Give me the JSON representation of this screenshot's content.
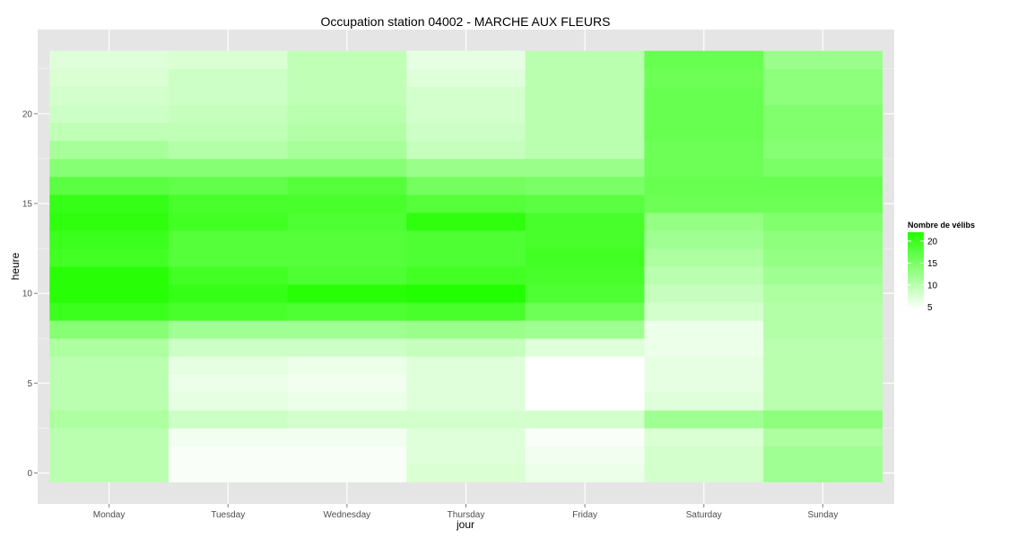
{
  "chart_data": {
    "type": "heatmap",
    "title": "Occupation station 04002 - MARCHE AUX FLEURS",
    "xlabel": "jour",
    "ylabel": "heure",
    "categories": [
      "Monday",
      "Tuesday",
      "Wednesday",
      "Thursday",
      "Friday",
      "Saturday",
      "Sunday"
    ],
    "hours": [
      0,
      1,
      2,
      3,
      4,
      5,
      6,
      7,
      8,
      9,
      10,
      11,
      12,
      13,
      14,
      15,
      16,
      17,
      18,
      19,
      20,
      21,
      22,
      23
    ],
    "y_ticks": [
      0,
      5,
      10,
      15,
      20
    ],
    "ylim": [
      -0.5,
      23.5
    ],
    "values": [
      [
        10,
        5,
        5,
        7.5,
        6,
        8,
        12
      ],
      [
        10,
        5,
        5,
        7,
        5.5,
        8,
        12
      ],
      [
        10,
        5.5,
        5.5,
        7,
        5,
        7.5,
        11
      ],
      [
        11,
        8.5,
        8,
        8,
        8,
        12,
        13.5
      ],
      [
        10,
        6.5,
        6,
        7,
        4.5,
        7,
        10
      ],
      [
        10,
        6,
        5.5,
        7,
        4.5,
        6.5,
        10
      ],
      [
        10,
        6.5,
        6,
        7,
        4.5,
        6.5,
        10
      ],
      [
        11,
        8.5,
        8.5,
        9,
        7,
        6,
        10
      ],
      [
        14,
        12,
        12,
        12.5,
        12,
        6,
        10.5
      ],
      [
        20,
        19,
        18.5,
        19,
        16,
        8,
        10.5
      ],
      [
        21.5,
        20.5,
        21.5,
        22,
        18.5,
        9,
        11
      ],
      [
        21.5,
        19.5,
        18.5,
        19.5,
        19,
        10,
        12
      ],
      [
        19.5,
        18,
        18,
        18.5,
        19.5,
        11,
        13
      ],
      [
        20,
        18,
        18,
        18.5,
        19,
        12,
        13.5
      ],
      [
        21,
        19.5,
        18.5,
        21,
        19,
        13,
        14.5
      ],
      [
        20.5,
        19,
        19,
        18,
        17.5,
        16,
        16
      ],
      [
        17.5,
        17,
        18,
        15.5,
        15,
        16.5,
        16.5
      ],
      [
        14,
        14,
        14,
        12.5,
        12.5,
        16,
        15
      ],
      [
        11.5,
        10.5,
        11.5,
        9,
        10,
        16,
        14
      ],
      [
        9.5,
        9.5,
        10.5,
        8.5,
        10,
        16.5,
        14.5
      ],
      [
        8.5,
        9,
        10,
        8,
        10,
        16.5,
        14.5
      ],
      [
        8,
        8.5,
        9.5,
        8,
        10,
        16.5,
        13.5
      ],
      [
        7.5,
        8.5,
        9.5,
        7,
        10,
        16,
        13.5
      ],
      [
        7,
        7.5,
        9.5,
        6.5,
        10,
        16.5,
        12.5
      ]
    ],
    "color_scale": {
      "low": "#ffffff",
      "high": "#22ff00",
      "min": 4.5,
      "max": 22
    },
    "legend": {
      "title": "Nombre de vélibs",
      "breaks": [
        20,
        15,
        10,
        5
      ],
      "position": "right"
    },
    "grid": true
  }
}
